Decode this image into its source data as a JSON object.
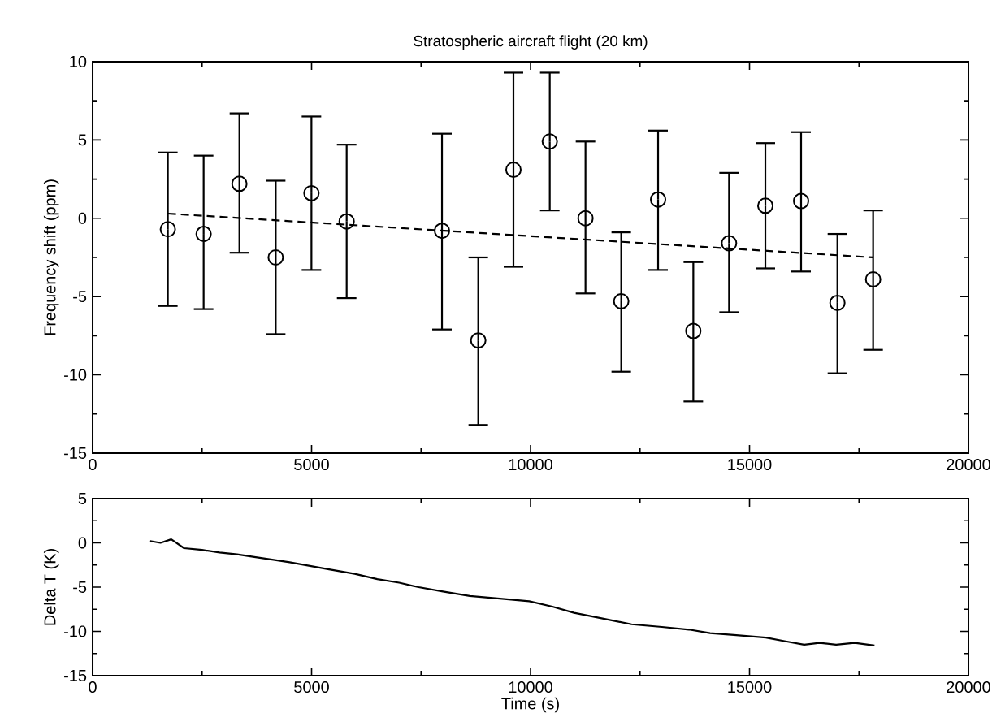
{
  "chart_data": [
    {
      "type": "scatter",
      "title": "Stratospheric aircraft flight (20 km)",
      "ylabel": "Frequency shift (ppm)",
      "xlim": [
        0,
        20000
      ],
      "xticks": [
        0,
        5000,
        10000,
        15000,
        20000
      ],
      "ylim": [
        -15,
        10
      ],
      "yticks": [
        -15,
        -10,
        -5,
        0,
        5,
        10
      ],
      "series": [
        {
          "color": "#000000",
          "marker": "circle",
          "x": [
            1718,
            2535,
            3352,
            4181,
            4997,
            5801,
            7978,
            8806,
            9610,
            10439,
            11255,
            12071,
            12913,
            13717,
            14533,
            15362,
            16178,
            17007,
            17823
          ],
          "values": [
            -0.7,
            -1.0,
            2.2,
            -2.5,
            1.6,
            -0.2,
            -0.8,
            -7.8,
            3.1,
            4.9,
            0.0,
            -5.3,
            1.2,
            -7.2,
            -1.6,
            0.8,
            1.1,
            -5.4,
            -3.9
          ],
          "errors": [
            [
              -5.6,
              4.2
            ],
            [
              -5.8,
              4.0
            ],
            [
              -2.2,
              6.7
            ],
            [
              -7.4,
              2.4
            ],
            [
              -3.3,
              6.5
            ],
            [
              -5.1,
              4.7
            ],
            [
              -7.1,
              5.4
            ],
            [
              -13.2,
              -2.5
            ],
            [
              -3.1,
              9.3
            ],
            [
              0.5,
              9.3
            ],
            [
              -4.8,
              4.9
            ],
            [
              -9.8,
              -0.9
            ],
            [
              -3.3,
              5.6
            ],
            [
              -11.7,
              -2.8
            ],
            [
              -6.0,
              2.9
            ],
            [
              -3.2,
              4.8
            ],
            [
              -3.4,
              5.5
            ],
            [
              -9.9,
              -1.0
            ],
            [
              -8.4,
              0.5
            ]
          ]
        },
        {
          "type": "line",
          "color": "#000000",
          "marker": "none",
          "line_style": "dashed",
          "x": [
            1718,
            17823
          ],
          "values": [
            0.3,
            -2.5
          ]
        }
      ]
    },
    {
      "type": "line",
      "xlabel": "Time (s)",
      "ylabel": "Delta T (K)",
      "xlim": [
        0,
        20000
      ],
      "xticks": [
        0,
        5000,
        10000,
        15000,
        20000
      ],
      "ylim": [
        -15,
        5
      ],
      "yticks": [
        -15,
        -10,
        -5,
        0,
        5
      ],
      "series": [
        {
          "color": "#000000",
          "marker": "none",
          "line_style": "solid",
          "x": [
            1314,
            1550,
            1796,
            2088,
            2500,
            2900,
            3300,
            3693,
            4100,
            4500,
            4964,
            5400,
            5985,
            6500,
            7000,
            7445,
            8000,
            8613,
            9300,
            9971,
            10500,
            10993,
            11600,
            12307,
            13000,
            13620,
            14100,
            14642,
            15372,
            15800,
            16248,
            16600,
            16978,
            17400,
            17854
          ],
          "values": [
            0.2,
            0.0,
            0.4,
            -0.6,
            -0.8,
            -1.1,
            -1.3,
            -1.6,
            -1.9,
            -2.2,
            -2.6,
            -3.0,
            -3.5,
            -4.1,
            -4.5,
            -5.0,
            -5.5,
            -6.0,
            -6.3,
            -6.6,
            -7.2,
            -7.9,
            -8.5,
            -9.2,
            -9.5,
            -9.8,
            -10.2,
            -10.4,
            -10.7,
            -11.1,
            -11.5,
            -11.3,
            -11.5,
            -11.3,
            -11.6
          ]
        }
      ]
    }
  ]
}
